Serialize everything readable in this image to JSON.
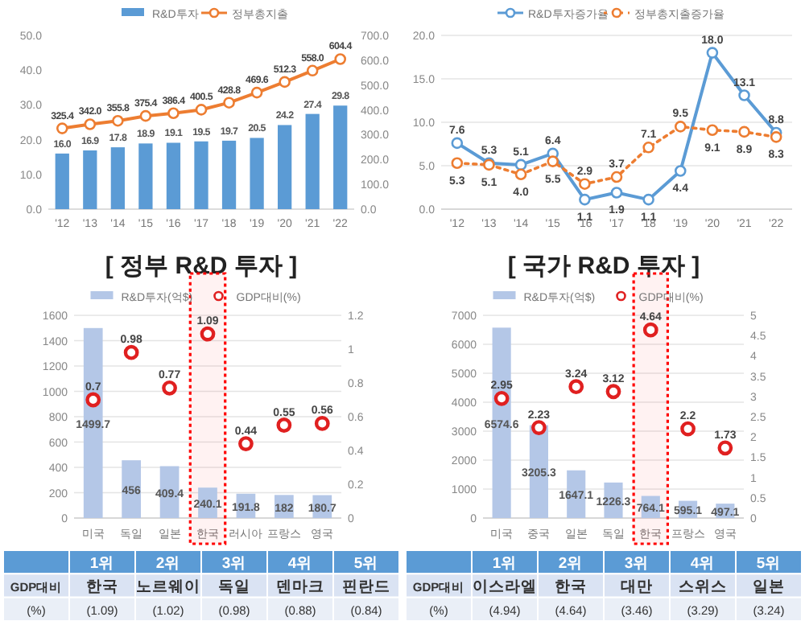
{
  "chart_data": [
    {
      "type": "bar",
      "categories": [
        "'12",
        "'13",
        "'14",
        "'15",
        "'16",
        "'17",
        "'18",
        "'19",
        "'20",
        "'21",
        "'22"
      ],
      "series": [
        {
          "name": "R&D투자",
          "type": "bar",
          "color": "#5b9bd5",
          "values": [
            16.0,
            16.9,
            17.8,
            18.9,
            19.1,
            19.5,
            19.7,
            20.5,
            24.2,
            27.4,
            29.8
          ],
          "value_labels": [
            "16.0",
            "16.9",
            "17.8",
            "18.9",
            "19.1",
            "19.5",
            "19.7",
            "20.5",
            "24.2",
            "27.4",
            "29.8"
          ]
        },
        {
          "name": "정부총지출",
          "type": "line",
          "axis": "y2",
          "marker": "circle",
          "line_style": "solid",
          "color": "#ed7d31",
          "values": [
            325.4,
            342.0,
            355.8,
            375.4,
            386.4,
            400.5,
            428.8,
            469.6,
            512.3,
            558.0,
            604.4
          ],
          "value_labels": [
            "325.4",
            "342.0",
            "355.8",
            "375.4",
            "386.4",
            "400.5",
            "428.8",
            "469.6",
            "512.3",
            "558.0",
            "604.4"
          ]
        }
      ],
      "ylim": [
        0,
        50
      ],
      "yticks": [
        {
          "value": 0,
          "label": "0.0"
        },
        {
          "value": 10,
          "label": "10.0"
        },
        {
          "value": 20,
          "label": "20.0"
        },
        {
          "value": 30,
          "label": "30.0"
        },
        {
          "value": 40,
          "label": "40.0"
        },
        {
          "value": 50,
          "label": "50.0"
        }
      ],
      "y2lim": [
        0,
        700
      ],
      "y2ticks": [
        {
          "value": 0,
          "label": "0.0"
        },
        {
          "value": 100,
          "label": "100.0"
        },
        {
          "value": 200,
          "label": "200.0"
        },
        {
          "value": 300,
          "label": "300.0"
        },
        {
          "value": 400,
          "label": "400.0"
        },
        {
          "value": 500,
          "label": "500.0"
        },
        {
          "value": 600,
          "label": "600.0"
        },
        {
          "value": 700,
          "label": "700.0"
        }
      ],
      "legend": "top"
    },
    {
      "type": "line",
      "categories": [
        "'12",
        "'13",
        "'14",
        "'15",
        "'16",
        "'17",
        "'18",
        "'19",
        "'20",
        "'21",
        "'22"
      ],
      "series": [
        {
          "name": "R&D투자증가율",
          "color": "#5b9bd5",
          "line_style": "solid",
          "marker": "circle",
          "values": [
            7.6,
            5.3,
            5.1,
            6.4,
            1.1,
            1.9,
            1.1,
            4.4,
            18.0,
            13.1,
            8.8
          ],
          "value_labels": [
            "7.6",
            "5.3",
            "5.1",
            "6.4",
            "1.1",
            "1.9",
            "1.1",
            "4.4",
            "18.0",
            "13.1",
            "8.8"
          ]
        },
        {
          "name": "정부총지출증가율",
          "color": "#ed7d31",
          "line_style": "dotted",
          "marker": "circle",
          "values": [
            5.3,
            5.1,
            4.0,
            5.5,
            2.9,
            3.7,
            7.1,
            9.5,
            9.1,
            8.9,
            8.3
          ],
          "value_labels": [
            "5.3",
            "5.1",
            "4.0",
            "5.5",
            "2.9",
            "3.7",
            "7.1",
            "9.5",
            "9.1",
            "8.9",
            "8.3"
          ]
        }
      ],
      "ylim": [
        0,
        20
      ],
      "yticks": [
        {
          "value": 0,
          "label": "0.0"
        },
        {
          "value": 5,
          "label": "5.0"
        },
        {
          "value": 10,
          "label": "10.0"
        },
        {
          "value": 15,
          "label": "15.0"
        },
        {
          "value": 20,
          "label": "20.0"
        }
      ],
      "grid": "y",
      "legend": "top"
    },
    {
      "type": "bar",
      "title": "[ 정부 R&D 투자 ]",
      "categories": [
        "미국",
        "독일",
        "일본",
        "한국",
        "러시아",
        "프랑스",
        "영국"
      ],
      "series": [
        {
          "name": "R&D투자(억$)",
          "type": "bar",
          "color": "#b4c7e7",
          "values": [
            1499.7,
            456,
            409.4,
            240.1,
            191.8,
            182,
            180.7
          ]
        },
        {
          "name": "GDP대비(%)",
          "type": "scatter",
          "axis": "y2",
          "marker": "circle",
          "color": "#e02020",
          "values": [
            0.7,
            0.98,
            0.77,
            1.09,
            0.44,
            0.55,
            0.56
          ]
        }
      ],
      "ylim": [
        0,
        1600
      ],
      "yticks": [
        0,
        200,
        400,
        600,
        800,
        1000,
        1200,
        1400,
        1600
      ],
      "y2lim": [
        0,
        1.2
      ],
      "y2ticks": [
        0,
        0.2,
        0.4,
        0.6,
        0.8,
        1,
        1.2
      ],
      "bands": [
        {
          "axis": "x",
          "from": "한국",
          "to": "한국",
          "color": "#ff0000"
        }
      ],
      "data_labels": true,
      "grid": "y",
      "legend": "top",
      "annotations": [
        "1위",
        "2위",
        "3위",
        "4위",
        "5위",
        "GDP대비",
        "한국",
        "노르웨이",
        "독일",
        "덴마크",
        "핀란드",
        "(%)",
        "(1.09)",
        "(1.02)",
        "(0.98)",
        "(0.88)",
        "(0.84)"
      ]
    },
    {
      "type": "bar",
      "title": "[ 국가 R&D 투자 ]",
      "categories": [
        "미국",
        "중국",
        "일본",
        "독일",
        "한국",
        "프랑스",
        "영국"
      ],
      "series": [
        {
          "name": "R&D투자(억$)",
          "type": "bar",
          "color": "#b4c7e7",
          "values": [
            6574.6,
            3205.3,
            1647.1,
            1226.3,
            764.1,
            595.1,
            497.1
          ]
        },
        {
          "name": "GDP대비(%)",
          "type": "scatter",
          "axis": "y2",
          "marker": "circle",
          "color": "#e02020",
          "values": [
            2.95,
            2.23,
            3.24,
            3.12,
            4.64,
            2.2,
            1.73
          ]
        }
      ],
      "ylim": [
        0,
        7000
      ],
      "yticks": [
        0,
        1000,
        2000,
        3000,
        4000,
        5000,
        6000,
        7000
      ],
      "y2lim": [
        0,
        5
      ],
      "y2ticks": [
        0,
        0.5,
        1,
        1.5,
        2,
        2.5,
        3,
        3.5,
        4,
        4.5,
        5
      ],
      "bands": [
        {
          "axis": "x",
          "from": "한국",
          "to": "한국",
          "color": "#ff0000"
        }
      ],
      "data_labels": true,
      "grid": "y",
      "legend": "top",
      "annotations": [
        "1위",
        "2위",
        "3위",
        "4위",
        "5위",
        "GDP대비",
        "이스라엘",
        "한국",
        "대만",
        "스위스",
        "일본",
        "(%)",
        "(4.94)",
        "(4.64)",
        "(3.46)",
        "(3.29)",
        "(3.24)"
      ]
    }
  ]
}
